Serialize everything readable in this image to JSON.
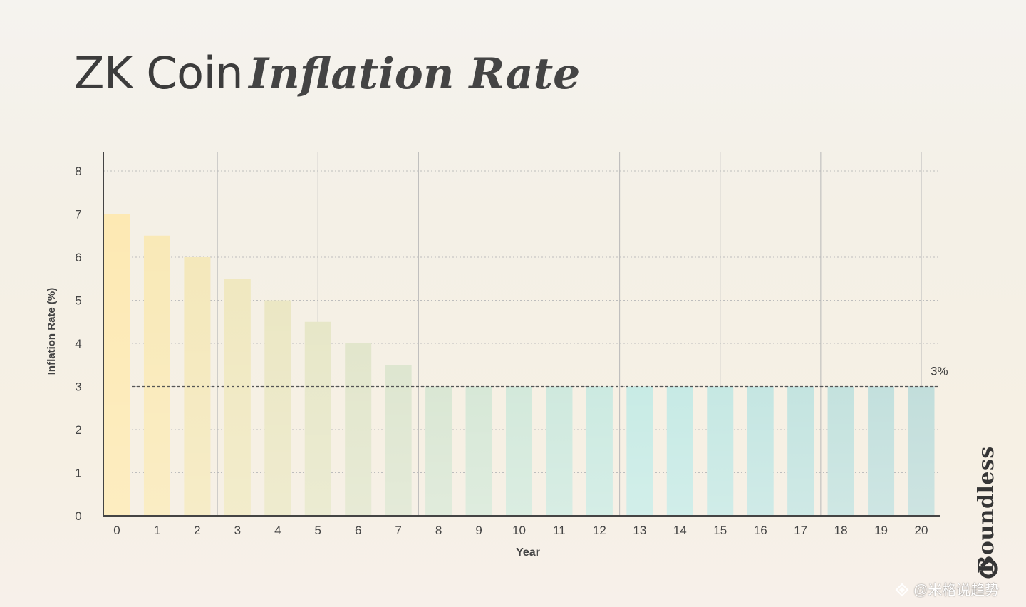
{
  "title": {
    "main": "ZK Coin",
    "accent": "Inflation Rate"
  },
  "watermark": {
    "brand": "Boundless",
    "credit": "@米格说趋势"
  },
  "colors": {
    "axis": "#444444",
    "grid": "#bdbdbd",
    "vgrid": "#b8b8b8",
    "reference_line": "#555555",
    "bar_start": "#fde9b3",
    "bar_mid": "#dfe6cf",
    "bar_cyan": "#c7ebe6",
    "bar_end": "#c2dedb"
  },
  "chart_data": {
    "type": "bar",
    "categories": [
      "0",
      "1",
      "2",
      "3",
      "4",
      "5",
      "6",
      "7",
      "8",
      "9",
      "10",
      "11",
      "12",
      "13",
      "14",
      "15",
      "16",
      "17",
      "18",
      "19",
      "20"
    ],
    "values": [
      7,
      6.5,
      6,
      5.5,
      5,
      4.5,
      4,
      3.5,
      3,
      3,
      3,
      3,
      3,
      3,
      3,
      3,
      3,
      3,
      3,
      3,
      3
    ],
    "title": "ZK Coin Inflation Rate",
    "xlabel": "Year",
    "ylabel": "Inflation Rate (%)",
    "ylim": [
      0,
      8
    ],
    "yticks": [
      0,
      1,
      2,
      3,
      4,
      5,
      6,
      7,
      8
    ],
    "grid": "horizontal dotted lines; vertical lines at years 2.5, 5, 7.5, 10, 12.5, 15, 17.5, 20",
    "vertical_gridlines_at": [
      2.5,
      5,
      7.5,
      10,
      12.5,
      15,
      17.5,
      20
    ],
    "reference_line": {
      "value": 3,
      "label": "3%",
      "style": "dashed"
    },
    "legend": "none"
  }
}
